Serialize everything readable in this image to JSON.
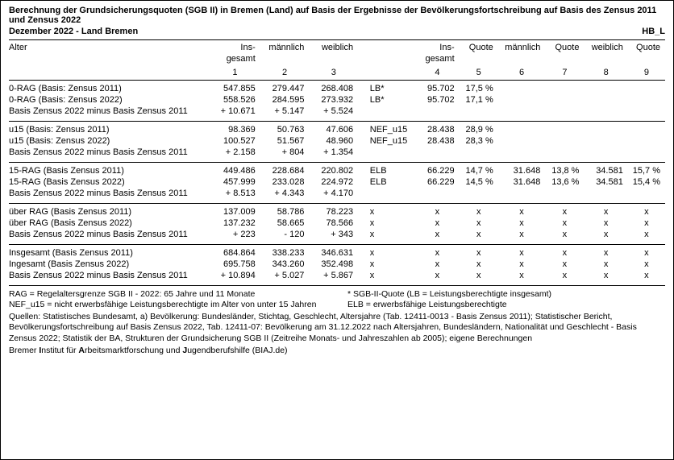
{
  "title": "Berechnung der Grundsicherungsquoten (SGB II) in Bremen (Land) auf Basis der Ergebnisse der Bevölkerungsfortschreibung auf Basis des Zensus 2011 und Zensus 2022",
  "subtitle_left": "Dezember 2022 - Land Bremen",
  "subtitle_right": "HB_L",
  "headers": {
    "alter": "Alter",
    "ins1": "Ins-",
    "ins2": "gesamt",
    "mann": "männlich",
    "weib": "weiblich",
    "ins1b": "Ins-",
    "ins2b": "gesamt",
    "quote": "Quote",
    "n1": "1",
    "n2": "2",
    "n3": "3",
    "n4": "4",
    "n5": "5",
    "n6": "6",
    "n7": "7",
    "n8": "8",
    "n9": "9"
  },
  "blocks": [
    {
      "rows": [
        {
          "label": "0-RAG (Basis:  Zensus 2011)",
          "c1": "547.855",
          "c2": "279.447",
          "c3": "268.408",
          "lab": "LB*",
          "c4": "95.702",
          "c5": "17,5 %",
          "c6": "",
          "c7": "",
          "c8": "",
          "c9": ""
        },
        {
          "label": "0-RAG (Basis:  Zensus 2022)",
          "bold": true,
          "c1": "558.526",
          "c2": "284.595",
          "c3": "273.932",
          "lab": "LB*",
          "c4": "95.702",
          "c5": "17,1 %",
          "c6": "",
          "c7": "",
          "c8": "",
          "c9": ""
        },
        {
          "label": "Basis Zensus 2022 minus Basis Zensus 2011",
          "c1": "+ 10.671",
          "c2": "+ 5.147",
          "c3": "+ 5.524",
          "lab": "",
          "c4": "",
          "c5": "",
          "c6": "",
          "c7": "",
          "c8": "",
          "c9": ""
        }
      ]
    },
    {
      "rows": [
        {
          "label": "u15 (Basis: Zensus 2011)",
          "c1": "98.369",
          "c2": "50.763",
          "c3": "47.606",
          "lab": "NEF_u15",
          "c4": "28.438",
          "c5": "28,9 %",
          "c6": "",
          "c7": "",
          "c8": "",
          "c9": ""
        },
        {
          "label": "u15 (Basis: Zensus 2022)",
          "bold": true,
          "c1": "100.527",
          "c2": "51.567",
          "c3": "48.960",
          "lab": "NEF_u15",
          "c4": "28.438",
          "c5": "28,3 %",
          "c6": "",
          "c7": "",
          "c8": "",
          "c9": ""
        },
        {
          "label": "Basis Zensus 2022 minus Basis Zensus 2011",
          "c1": "+ 2.158",
          "c2": "+ 804",
          "c3": "+ 1.354",
          "lab": "",
          "c4": "",
          "c5": "",
          "c6": "",
          "c7": "",
          "c8": "",
          "c9": ""
        }
      ]
    },
    {
      "rows": [
        {
          "label": "15-RAG (Basis Zensus 2011)",
          "c1": "449.486",
          "c2": "228.684",
          "c3": "220.802",
          "lab": "ELB",
          "c4": "66.229",
          "c5": "14,7 %",
          "c6": "31.648",
          "c7": "13,8 %",
          "c8": "34.581",
          "c9": "15,7 %"
        },
        {
          "label": "15-RAG (Basis Zensus 2022)",
          "bold": true,
          "c1": "457.999",
          "c2": "233.028",
          "c3": "224.972",
          "lab": "ELB",
          "c4": "66.229",
          "c5": "14,5 %",
          "c6": "31.648",
          "c7": "13,6 %",
          "c8": "34.581",
          "c9": "15,4 %"
        },
        {
          "label": "Basis Zensus 2022 minus Basis Zensus 2011",
          "c1": "+ 8.513",
          "c2": "+ 4.343",
          "c3": "+ 4.170",
          "lab": "",
          "c4": "",
          "c5": "",
          "c6": "",
          "c7": "",
          "c8": "",
          "c9": ""
        }
      ]
    },
    {
      "rows": [
        {
          "label": "über RAG (Basis Zensus 2011)",
          "c1": "137.009",
          "c2": "58.786",
          "c3": "78.223",
          "lab": "x",
          "c4": "x",
          "c5": "x",
          "c6": "x",
          "c7": "x",
          "c8": "x",
          "c9": "x",
          "center": true
        },
        {
          "label": "über RAG (Basis Zensus 2022)",
          "bold": true,
          "c1": "137.232",
          "c2": "58.665",
          "c3": "78.566",
          "lab": "x",
          "c4": "x",
          "c5": "x",
          "c6": "x",
          "c7": "x",
          "c8": "x",
          "c9": "x",
          "center": true
        },
        {
          "label": "Basis Zensus 2022 minus Basis Zensus 2011",
          "c1": "+ 223",
          "c2": "- 120",
          "c3": "+ 343",
          "lab": "x",
          "c4": "x",
          "c5": "x",
          "c6": "x",
          "c7": "x",
          "c8": "x",
          "c9": "x",
          "center": true
        }
      ]
    },
    {
      "rows": [
        {
          "label": "Insgesamt (Basis Zensus 2011)",
          "c1": "684.864",
          "c2": "338.233",
          "c3": "346.631",
          "lab": "x",
          "c4": "x",
          "c5": "x",
          "c6": "x",
          "c7": "x",
          "c8": "x",
          "c9": "x",
          "center": true
        },
        {
          "label": "Ingesamt (Basis Zensus 2022)",
          "bold": true,
          "c1": "695.758",
          "c2": "343.260",
          "c3": "352.498",
          "lab": "x",
          "c4": "x",
          "c5": "x",
          "c6": "x",
          "c7": "x",
          "c8": "x",
          "c9": "x",
          "center": true
        },
        {
          "label": "Basis Zensus 2022 minus Basis Zensus 2011",
          "c1": "+ 10.894",
          "c2": "+ 5.027",
          "c3": "+ 5.867",
          "lab": "x",
          "c4": "x",
          "c5": "x",
          "c6": "x",
          "c7": "x",
          "c8": "x",
          "c9": "x",
          "center": true
        }
      ]
    }
  ],
  "footer": {
    "l1a": "RAG = Regelaltersgrenze SGB II - 2022: 65 Jahre und 11 Monate",
    "l1b": "* SGB-II-Quote (LB = Leistungsberechtigte insgesamt)",
    "l2a": "NEF_u15 = nicht erwerbsfähige Leistungsberechtigte im Alter von unter 15 Jahren",
    "l2b": "ELB = erwerbsfähige Leistungsberechtigte",
    "src": "Quellen: Statistisches Bundesamt, a) Bevölkerung: Bundesländer, Stichtag, Geschlecht, Altersjahre (Tab. 12411-0013 - Basis Zensus 2011); Statistischer Bericht, Bevölkerungsfortschreibung auf Basis Zensus 2022, Tab. 12411-07: Bevölkerung am 31.12.2022 nach Altersjahren, Bundesländern, Nationalität und Geschlecht - Basis Zensus 2022; Statistik der BA, Strukturen der Grundsicherung SGB II (Zeitreihe Monats- und Jahreszahlen ab 2005); eigene Berechnungen",
    "biaj_pre": "Bremer ",
    "biaj_b1": "I",
    "biaj_t1": "nstitut für ",
    "biaj_b2": "A",
    "biaj_t2": "rbeitsmarktforschung und ",
    "biaj_b3": "J",
    "biaj_t3": "ugendberufshilfe (BIAJ.de)"
  }
}
